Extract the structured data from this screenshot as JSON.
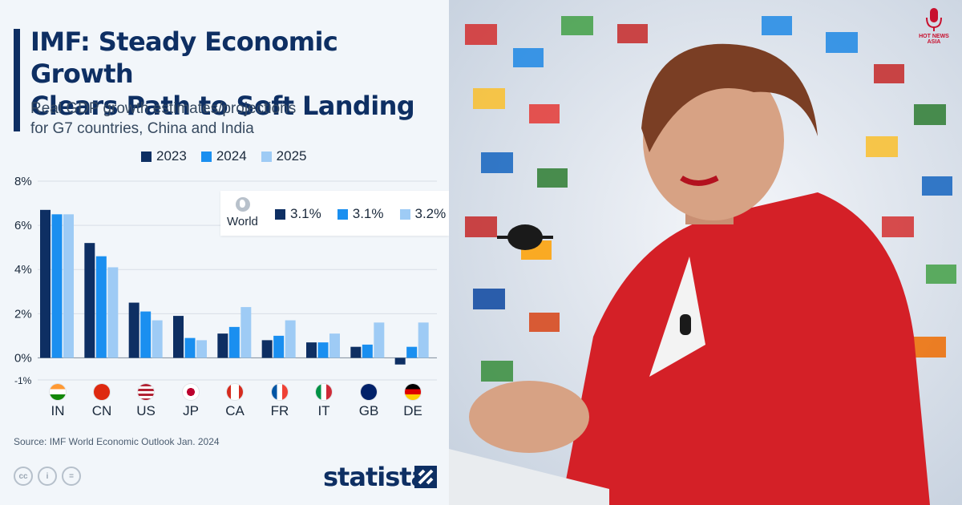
{
  "header": {
    "title_line1": "IMF: Steady Economic Growth",
    "title_line2": "Clears Path to Soft Landing",
    "subtitle_line1": "Real GDP growth estimates/projections",
    "subtitle_line2": "for G7 countries, China and India"
  },
  "legend": [
    {
      "label": "2023",
      "color": "#0e2f63"
    },
    {
      "label": "2024",
      "color": "#1a8ff0"
    },
    {
      "label": "2025",
      "color": "#9ecbf5"
    }
  ],
  "world": {
    "label": "World",
    "values": [
      "3.1%",
      "3.1%",
      "3.2%"
    ]
  },
  "chart_data": {
    "type": "bar",
    "categories": [
      "IN",
      "CN",
      "US",
      "JP",
      "CA",
      "FR",
      "IT",
      "GB",
      "DE"
    ],
    "series": [
      {
        "name": "2023",
        "values": [
          6.7,
          5.2,
          2.5,
          1.9,
          1.1,
          0.8,
          0.7,
          0.5,
          -0.3
        ]
      },
      {
        "name": "2024",
        "values": [
          6.5,
          4.6,
          2.1,
          0.9,
          1.4,
          1.0,
          0.7,
          0.6,
          0.5
        ]
      },
      {
        "name": "2025",
        "values": [
          6.5,
          4.1,
          1.7,
          0.8,
          2.3,
          1.7,
          1.1,
          1.6,
          1.6
        ]
      }
    ],
    "ylim": [
      -1,
      8
    ],
    "yticks": [
      {
        "value": 8,
        "label": "8%"
      },
      {
        "value": 6,
        "label": "6%"
      },
      {
        "value": 4,
        "label": "4%"
      },
      {
        "value": 2,
        "label": "2%"
      },
      {
        "value": 0,
        "label": "0%"
      },
      {
        "value": -1,
        "label": "-1%"
      }
    ],
    "grid": true,
    "legend_position": "top"
  },
  "footer": {
    "source": "Source: IMF World Economic Outlook Jan. 2024",
    "brand": "statista",
    "cc_icons": [
      "cc-icon",
      "person-icon",
      "equals-icon"
    ]
  },
  "photo": {
    "logo_text": "HOT NEWS ASIA",
    "accent_color": "#c8102e"
  }
}
